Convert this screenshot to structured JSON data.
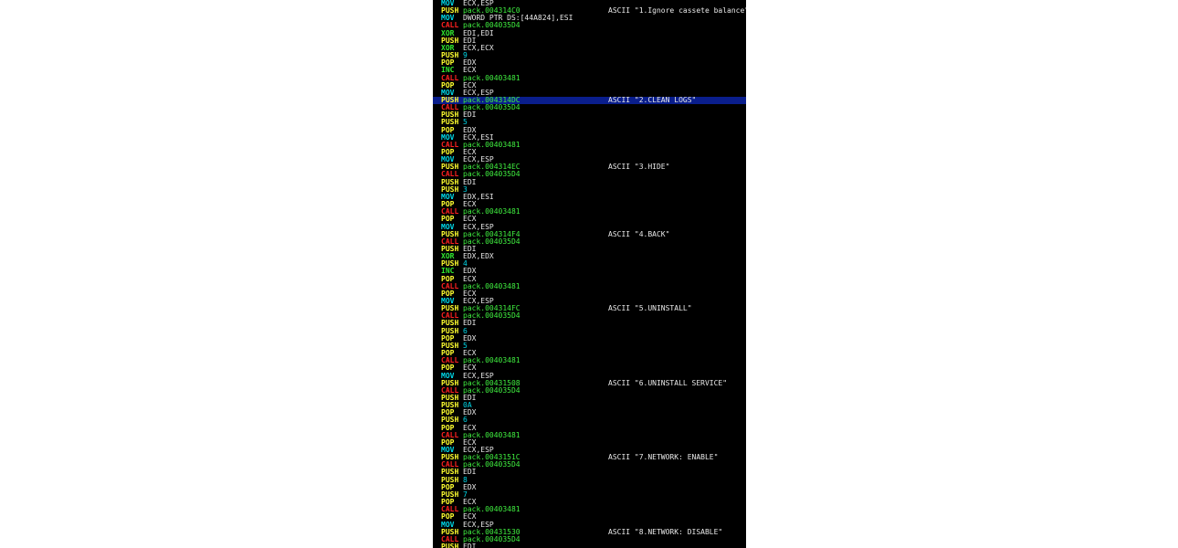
{
  "colors": {
    "background": "#000000",
    "selected_row": "#0a1e8c",
    "call": "#ff2020",
    "push_pop": "#ffff30",
    "mov": "#00d8e8",
    "xor": "#30e830",
    "inc": "#30e830",
    "register_operand": "#e8e8e8",
    "address_operand": "#40f040",
    "immediate_operand": "#00d8e8",
    "comment": "#e8e8e8"
  },
  "selected_row_index": 13,
  "rows": [
    {
      "mnemonic": "MOV",
      "operand": "ECX,ESP",
      "comment": ""
    },
    {
      "mnemonic": "PUSH",
      "operand": "pack.004314C0",
      "comment": "ASCII \"1.Ignore cassete balance\""
    },
    {
      "mnemonic": "MOV",
      "operand": "DWORD PTR DS:[44A824],ESI",
      "comment": ""
    },
    {
      "mnemonic": "CALL",
      "operand": "pack.004035D4",
      "comment": ""
    },
    {
      "mnemonic": "XOR",
      "operand": "EDI,EDI",
      "comment": ""
    },
    {
      "mnemonic": "PUSH",
      "operand": "EDI",
      "comment": ""
    },
    {
      "mnemonic": "XOR",
      "operand": "ECX,ECX",
      "comment": ""
    },
    {
      "mnemonic": "PUSH",
      "operand": "9",
      "comment": ""
    },
    {
      "mnemonic": "POP",
      "operand": "EDX",
      "comment": ""
    },
    {
      "mnemonic": "INC",
      "operand": "ECX",
      "comment": ""
    },
    {
      "mnemonic": "CALL",
      "operand": "pack.00403481",
      "comment": ""
    },
    {
      "mnemonic": "POP",
      "operand": "ECX",
      "comment": ""
    },
    {
      "mnemonic": "MOV",
      "operand": "ECX,ESP",
      "comment": ""
    },
    {
      "mnemonic": "PUSH",
      "operand": "pack.004314DC",
      "comment": "ASCII \"2.CLEAN LOGS\""
    },
    {
      "mnemonic": "CALL",
      "operand": "pack.004035D4",
      "comment": ""
    },
    {
      "mnemonic": "PUSH",
      "operand": "EDI",
      "comment": ""
    },
    {
      "mnemonic": "PUSH",
      "operand": "5",
      "comment": ""
    },
    {
      "mnemonic": "POP",
      "operand": "EDX",
      "comment": ""
    },
    {
      "mnemonic": "MOV",
      "operand": "ECX,ESI",
      "comment": ""
    },
    {
      "mnemonic": "CALL",
      "operand": "pack.00403481",
      "comment": ""
    },
    {
      "mnemonic": "POP",
      "operand": "ECX",
      "comment": ""
    },
    {
      "mnemonic": "MOV",
      "operand": "ECX,ESP",
      "comment": ""
    },
    {
      "mnemonic": "PUSH",
      "operand": "pack.004314EC",
      "comment": "ASCII \"3.HIDE\""
    },
    {
      "mnemonic": "CALL",
      "operand": "pack.004035D4",
      "comment": ""
    },
    {
      "mnemonic": "PUSH",
      "operand": "EDI",
      "comment": ""
    },
    {
      "mnemonic": "PUSH",
      "operand": "3",
      "comment": ""
    },
    {
      "mnemonic": "MOV",
      "operand": "EDX,ESI",
      "comment": ""
    },
    {
      "mnemonic": "POP",
      "operand": "ECX",
      "comment": ""
    },
    {
      "mnemonic": "CALL",
      "operand": "pack.00403481",
      "comment": ""
    },
    {
      "mnemonic": "POP",
      "operand": "ECX",
      "comment": ""
    },
    {
      "mnemonic": "MOV",
      "operand": "ECX,ESP",
      "comment": ""
    },
    {
      "mnemonic": "PUSH",
      "operand": "pack.004314F4",
      "comment": "ASCII \"4.BACK\""
    },
    {
      "mnemonic": "CALL",
      "operand": "pack.004035D4",
      "comment": ""
    },
    {
      "mnemonic": "PUSH",
      "operand": "EDI",
      "comment": ""
    },
    {
      "mnemonic": "XOR",
      "operand": "EDX,EDX",
      "comment": ""
    },
    {
      "mnemonic": "PUSH",
      "operand": "4",
      "comment": ""
    },
    {
      "mnemonic": "INC",
      "operand": "EDX",
      "comment": ""
    },
    {
      "mnemonic": "POP",
      "operand": "ECX",
      "comment": ""
    },
    {
      "mnemonic": "CALL",
      "operand": "pack.00403481",
      "comment": ""
    },
    {
      "mnemonic": "POP",
      "operand": "ECX",
      "comment": ""
    },
    {
      "mnemonic": "MOV",
      "operand": "ECX,ESP",
      "comment": ""
    },
    {
      "mnemonic": "PUSH",
      "operand": "pack.004314FC",
      "comment": "ASCII \"5.UNINSTALL\""
    },
    {
      "mnemonic": "CALL",
      "operand": "pack.004035D4",
      "comment": ""
    },
    {
      "mnemonic": "PUSH",
      "operand": "EDI",
      "comment": ""
    },
    {
      "mnemonic": "PUSH",
      "operand": "6",
      "comment": ""
    },
    {
      "mnemonic": "POP",
      "operand": "EDX",
      "comment": ""
    },
    {
      "mnemonic": "PUSH",
      "operand": "5",
      "comment": ""
    },
    {
      "mnemonic": "POP",
      "operand": "ECX",
      "comment": ""
    },
    {
      "mnemonic": "CALL",
      "operand": "pack.00403481",
      "comment": ""
    },
    {
      "mnemonic": "POP",
      "operand": "ECX",
      "comment": ""
    },
    {
      "mnemonic": "MOV",
      "operand": "ECX,ESP",
      "comment": ""
    },
    {
      "mnemonic": "PUSH",
      "operand": "pack.00431508",
      "comment": "ASCII \"6.UNINSTALL SERVICE\""
    },
    {
      "mnemonic": "CALL",
      "operand": "pack.004035D4",
      "comment": ""
    },
    {
      "mnemonic": "PUSH",
      "operand": "EDI",
      "comment": ""
    },
    {
      "mnemonic": "PUSH",
      "operand": "0A",
      "comment": ""
    },
    {
      "mnemonic": "POP",
      "operand": "EDX",
      "comment": ""
    },
    {
      "mnemonic": "PUSH",
      "operand": "6",
      "comment": ""
    },
    {
      "mnemonic": "POP",
      "operand": "ECX",
      "comment": ""
    },
    {
      "mnemonic": "CALL",
      "operand": "pack.00403481",
      "comment": ""
    },
    {
      "mnemonic": "POP",
      "operand": "ECX",
      "comment": ""
    },
    {
      "mnemonic": "MOV",
      "operand": "ECX,ESP",
      "comment": ""
    },
    {
      "mnemonic": "PUSH",
      "operand": "pack.0043151C",
      "comment": "ASCII \"7.NETWORK: ENABLE\""
    },
    {
      "mnemonic": "CALL",
      "operand": "pack.004035D4",
      "comment": ""
    },
    {
      "mnemonic": "PUSH",
      "operand": "EDI",
      "comment": ""
    },
    {
      "mnemonic": "PUSH",
      "operand": "8",
      "comment": ""
    },
    {
      "mnemonic": "POP",
      "operand": "EDX",
      "comment": ""
    },
    {
      "mnemonic": "PUSH",
      "operand": "7",
      "comment": ""
    },
    {
      "mnemonic": "POP",
      "operand": "ECX",
      "comment": ""
    },
    {
      "mnemonic": "CALL",
      "operand": "pack.00403481",
      "comment": ""
    },
    {
      "mnemonic": "POP",
      "operand": "ECX",
      "comment": ""
    },
    {
      "mnemonic": "MOV",
      "operand": "ECX,ESP",
      "comment": ""
    },
    {
      "mnemonic": "PUSH",
      "operand": "pack.00431530",
      "comment": "ASCII \"8.NETWORK: DISABLE\""
    },
    {
      "mnemonic": "CALL",
      "operand": "pack.004035D4",
      "comment": ""
    },
    {
      "mnemonic": "PUSH",
      "operand": "EDI",
      "comment": ""
    }
  ]
}
